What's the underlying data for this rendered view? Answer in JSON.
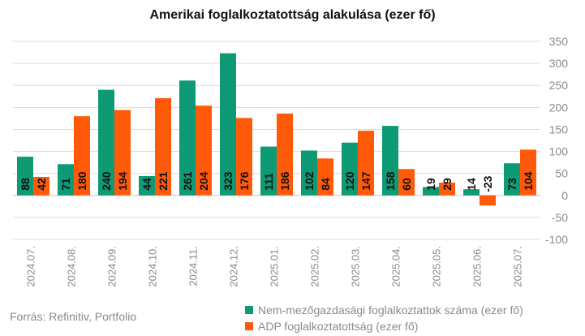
{
  "chart_data": {
    "type": "bar",
    "title": "Amerikai foglalkoztatottság alakulása (ezer fő)",
    "categories": [
      "2024.07.",
      "2024.08.",
      "2024.09.",
      "2024.10.",
      "2024.11.",
      "2024.12.",
      "2025.01.",
      "2025.02.",
      "2025.03.",
      "2025.04.",
      "2025.05.",
      "2025.06.",
      "2025.07."
    ],
    "series": [
      {
        "name": "Nem-mezőgazdasági foglalkoztattok száma (ezer fő)",
        "color": "#0e9a74",
        "values": [
          88,
          71,
          240,
          44,
          261,
          323,
          111,
          102,
          120,
          158,
          19,
          14,
          73
        ],
        "labels": [
          "88",
          "71",
          "240",
          "44",
          "261",
          "323",
          "111",
          "102",
          "120",
          "158",
          "19",
          "14",
          "73"
        ]
      },
      {
        "name": "ADP foglalkoztatottság (ezer fő)",
        "color": "#ff5a0a",
        "values": [
          42,
          180,
          194,
          221,
          204,
          176,
          186,
          84,
          147,
          60,
          29,
          -23,
          104
        ],
        "labels": [
          "42",
          "180",
          "194",
          "221",
          "204",
          "176",
          "186",
          "84",
          "147",
          "60",
          "29",
          "-23",
          "104"
        ]
      }
    ],
    "ylim": [
      -100,
      350
    ],
    "yticks": [
      -100,
      -50,
      0,
      50,
      100,
      150,
      200,
      250,
      300,
      350
    ],
    "ytick_labels": [
      "-100",
      "-50",
      "0",
      "50",
      "100",
      "150",
      "200",
      "250",
      "300",
      "350"
    ],
    "grid": true,
    "legend_position": "bottom",
    "xlabel": "",
    "ylabel": ""
  },
  "source": "Forrás: Refinitiv, Portfolio"
}
